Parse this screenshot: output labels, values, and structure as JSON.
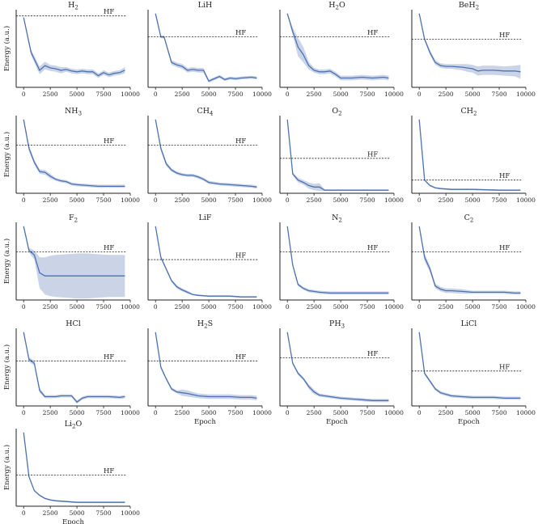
{
  "chart_data": [
    {
      "type": "line",
      "title": "H",
      "sub": "2",
      "hf_label": "HF",
      "xlabel": "",
      "ylabel": "Energy (a.u.)",
      "hf": 0.92,
      "x": [
        0,
        700,
        1500,
        2000,
        2500,
        3000,
        3500,
        4000,
        4500,
        5000,
        5500,
        6000,
        6500,
        7000,
        7500,
        8000,
        8500,
        9000,
        9500
      ],
      "y": [
        0.9,
        0.45,
        0.22,
        0.28,
        0.25,
        0.24,
        0.22,
        0.23,
        0.21,
        0.2,
        0.21,
        0.2,
        0.2,
        0.15,
        0.19,
        0.16,
        0.18,
        0.19,
        0.22
      ],
      "spread": [
        0.01,
        0.04,
        0.05,
        0.05,
        0.04,
        0.04,
        0.04,
        0.03,
        0.03,
        0.03,
        0.03,
        0.03,
        0.03,
        0.03,
        0.03,
        0.03,
        0.03,
        0.03,
        0.04
      ]
    },
    {
      "type": "line",
      "title": "LiH",
      "sub": "",
      "hf_label": "HF",
      "xlabel": "",
      "ylabel": "",
      "hf": 0.65,
      "x": [
        0,
        500,
        800,
        1500,
        2000,
        2500,
        3000,
        3500,
        4000,
        4500,
        5000,
        5500,
        6000,
        6500,
        7000,
        7500,
        8000,
        9000,
        9500
      ],
      "y": [
        0.95,
        0.65,
        0.65,
        0.32,
        0.29,
        0.27,
        0.22,
        0.23,
        0.22,
        0.22,
        0.08,
        0.11,
        0.14,
        0.1,
        0.12,
        0.11,
        0.12,
        0.13,
        0.12
      ],
      "spread": [
        0.01,
        0.02,
        0.02,
        0.03,
        0.03,
        0.03,
        0.03,
        0.03,
        0.03,
        0.03,
        0.02,
        0.02,
        0.02,
        0.02,
        0.02,
        0.02,
        0.02,
        0.02,
        0.02
      ]
    },
    {
      "type": "line",
      "title": "H",
      "sub": "2",
      "post": "O",
      "hf_label": "HF",
      "xlabel": "",
      "ylabel": "",
      "hf": 0.65,
      "x": [
        0,
        500,
        1000,
        1500,
        2000,
        2500,
        3000,
        3500,
        4000,
        4500,
        5000,
        6000,
        7000,
        8000,
        9000,
        9500
      ],
      "y": [
        0.95,
        0.72,
        0.52,
        0.42,
        0.28,
        0.22,
        0.2,
        0.2,
        0.21,
        0.17,
        0.12,
        0.12,
        0.13,
        0.12,
        0.13,
        0.12
      ],
      "spread": [
        0.01,
        0.05,
        0.12,
        0.1,
        0.05,
        0.03,
        0.03,
        0.03,
        0.03,
        0.03,
        0.03,
        0.03,
        0.03,
        0.03,
        0.03,
        0.03
      ]
    },
    {
      "type": "line",
      "title": "BeH",
      "sub": "2",
      "hf_label": "HF",
      "xlabel": "",
      "ylabel": "",
      "hf": 0.62,
      "x": [
        0,
        500,
        1000,
        1500,
        2000,
        2500,
        3000,
        4000,
        4500,
        5000,
        5500,
        6000,
        7000,
        8000,
        9000,
        9500
      ],
      "y": [
        0.95,
        0.62,
        0.45,
        0.32,
        0.28,
        0.27,
        0.27,
        0.26,
        0.25,
        0.24,
        0.21,
        0.22,
        0.22,
        0.21,
        0.21,
        0.2
      ],
      "spread": [
        0.01,
        0.02,
        0.03,
        0.03,
        0.03,
        0.03,
        0.03,
        0.04,
        0.05,
        0.05,
        0.06,
        0.06,
        0.06,
        0.06,
        0.07,
        0.09
      ]
    },
    {
      "type": "line",
      "title": "NH",
      "sub": "3",
      "hf_label": "HF",
      "xlabel": "",
      "ylabel": "Energy (a.u.)",
      "hf": 0.62,
      "x": [
        0,
        500,
        1000,
        1500,
        2000,
        2500,
        3000,
        3500,
        4000,
        4500,
        5000,
        6000,
        7000,
        8000,
        9000,
        9500
      ],
      "y": [
        0.95,
        0.58,
        0.4,
        0.28,
        0.27,
        0.22,
        0.18,
        0.16,
        0.15,
        0.12,
        0.11,
        0.1,
        0.09,
        0.09,
        0.09,
        0.09
      ],
      "spread": [
        0.01,
        0.04,
        0.03,
        0.03,
        0.03,
        0.03,
        0.02,
        0.02,
        0.02,
        0.02,
        0.02,
        0.02,
        0.02,
        0.02,
        0.02,
        0.02
      ]
    },
    {
      "type": "line",
      "title": "CH",
      "sub": "4",
      "hf_label": "HF",
      "xlabel": "",
      "ylabel": "",
      "hf": 0.62,
      "x": [
        0,
        500,
        1000,
        1500,
        2000,
        2500,
        3000,
        3500,
        4000,
        4500,
        5000,
        6000,
        7000,
        8000,
        9000,
        9500
      ],
      "y": [
        0.95,
        0.58,
        0.38,
        0.3,
        0.26,
        0.24,
        0.23,
        0.23,
        0.21,
        0.18,
        0.14,
        0.12,
        0.11,
        0.1,
        0.09,
        0.08
      ],
      "spread": [
        0.01,
        0.03,
        0.03,
        0.02,
        0.02,
        0.02,
        0.02,
        0.02,
        0.02,
        0.02,
        0.02,
        0.02,
        0.02,
        0.02,
        0.02,
        0.02
      ]
    },
    {
      "type": "line",
      "title": "O",
      "sub": "2",
      "hf_label": "HF",
      "xlabel": "",
      "ylabel": "",
      "hf": 0.45,
      "x": [
        0,
        500,
        1000,
        1500,
        2000,
        2500,
        3000,
        3500,
        4000,
        5000,
        6000,
        7000,
        8000,
        9000,
        9500
      ],
      "y": [
        0.95,
        0.25,
        0.17,
        0.14,
        0.1,
        0.08,
        0.08,
        0.04,
        0.04,
        0.04,
        0.04,
        0.04,
        0.04,
        0.04,
        0.04
      ],
      "spread": [
        0.01,
        0.02,
        0.03,
        0.03,
        0.04,
        0.04,
        0.05,
        0.01,
        0.01,
        0.01,
        0.01,
        0.01,
        0.01,
        0.01,
        0.01
      ]
    },
    {
      "type": "line",
      "title": "CH",
      "sub": "2",
      "hf_label": "HF",
      "xlabel": "",
      "ylabel": "",
      "hf": 0.17,
      "x": [
        0,
        500,
        1000,
        1500,
        2000,
        3000,
        5000,
        7500,
        9500
      ],
      "y": [
        0.95,
        0.17,
        0.1,
        0.07,
        0.06,
        0.05,
        0.05,
        0.04,
        0.04
      ],
      "spread": [
        0.01,
        0.01,
        0.01,
        0.01,
        0.01,
        0.01,
        0.01,
        0.01,
        0.01
      ]
    },
    {
      "type": "line",
      "title": "F",
      "sub": "2",
      "hf_label": "HF",
      "xlabel": "",
      "ylabel": "Energy (a.u.)",
      "hf": 0.62,
      "x": [
        0,
        500,
        1000,
        1500,
        2000,
        2500,
        3000,
        4000,
        5000,
        6000,
        7000,
        8000,
        9000,
        9500
      ],
      "y": [
        0.95,
        0.64,
        0.58,
        0.35,
        0.31,
        0.31,
        0.31,
        0.31,
        0.31,
        0.31,
        0.31,
        0.31,
        0.31,
        0.31
      ],
      "spread": [
        0.01,
        0.03,
        0.06,
        0.2,
        0.24,
        0.26,
        0.27,
        0.28,
        0.29,
        0.29,
        0.28,
        0.27,
        0.27,
        0.27
      ]
    },
    {
      "type": "line",
      "title": "LiF",
      "sub": "",
      "hf_label": "HF",
      "xlabel": "",
      "ylabel": "",
      "hf": 0.52,
      "x": [
        0,
        500,
        1000,
        1500,
        2000,
        2500,
        3000,
        3500,
        4000,
        5000,
        6000,
        7000,
        8000,
        9000,
        9500
      ],
      "y": [
        0.95,
        0.55,
        0.4,
        0.25,
        0.17,
        0.13,
        0.1,
        0.07,
        0.06,
        0.05,
        0.05,
        0.05,
        0.04,
        0.04,
        0.04
      ],
      "spread": [
        0.01,
        0.02,
        0.02,
        0.02,
        0.02,
        0.02,
        0.02,
        0.01,
        0.01,
        0.01,
        0.01,
        0.01,
        0.01,
        0.01,
        0.01
      ]
    },
    {
      "type": "line",
      "title": "N",
      "sub": "2",
      "hf_label": "HF",
      "xlabel": "",
      "ylabel": "",
      "hf": 0.62,
      "x": [
        0,
        500,
        1000,
        1500,
        2000,
        2500,
        3000,
        4000,
        5000,
        6000,
        7000,
        8000,
        9000,
        9500
      ],
      "y": [
        0.95,
        0.45,
        0.2,
        0.15,
        0.12,
        0.11,
        0.1,
        0.09,
        0.09,
        0.09,
        0.09,
        0.09,
        0.09,
        0.09
      ],
      "spread": [
        0.01,
        0.02,
        0.02,
        0.02,
        0.02,
        0.02,
        0.02,
        0.02,
        0.02,
        0.02,
        0.02,
        0.02,
        0.02,
        0.02
      ]
    },
    {
      "type": "line",
      "title": "C",
      "sub": "2",
      "hf_label": "HF",
      "xlabel": "",
      "ylabel": "",
      "hf": 0.62,
      "x": [
        0,
        500,
        1000,
        1500,
        2000,
        2500,
        3000,
        4000,
        5000,
        6000,
        7000,
        8000,
        9000,
        9500
      ],
      "y": [
        0.95,
        0.55,
        0.4,
        0.18,
        0.14,
        0.12,
        0.12,
        0.11,
        0.1,
        0.1,
        0.1,
        0.1,
        0.09,
        0.09
      ],
      "spread": [
        0.01,
        0.05,
        0.04,
        0.03,
        0.03,
        0.03,
        0.03,
        0.03,
        0.02,
        0.02,
        0.02,
        0.02,
        0.02,
        0.02
      ]
    },
    {
      "type": "line",
      "title": "HCl",
      "sub": "",
      "hf_label": "HF",
      "xlabel": "",
      "ylabel": "Energy (a.u.)",
      "hf": 0.58,
      "x": [
        0,
        500,
        1000,
        1500,
        2000,
        2500,
        3000,
        3500,
        4000,
        4500,
        5000,
        5500,
        6000,
        7000,
        8000,
        9000,
        9500
      ],
      "y": [
        0.95,
        0.6,
        0.55,
        0.2,
        0.12,
        0.12,
        0.12,
        0.13,
        0.13,
        0.13,
        0.05,
        0.1,
        0.12,
        0.12,
        0.12,
        0.11,
        0.12
      ],
      "spread": [
        0.01,
        0.03,
        0.03,
        0.03,
        0.02,
        0.02,
        0.02,
        0.02,
        0.02,
        0.02,
        0.02,
        0.02,
        0.02,
        0.02,
        0.02,
        0.02,
        0.02
      ]
    },
    {
      "type": "line",
      "title": "H",
      "sub": "2",
      "post": "S",
      "hf_label": "HF",
      "xlabel": "Epoch",
      "ylabel": "",
      "hf": 0.58,
      "x": [
        0,
        500,
        1000,
        1500,
        2000,
        2500,
        3000,
        4000,
        5000,
        6000,
        7000,
        8000,
        9000,
        9500
      ],
      "y": [
        0.95,
        0.5,
        0.35,
        0.22,
        0.18,
        0.17,
        0.16,
        0.13,
        0.12,
        0.12,
        0.12,
        0.11,
        0.11,
        0.1
      ],
      "spread": [
        0.01,
        0.02,
        0.02,
        0.02,
        0.02,
        0.04,
        0.04,
        0.03,
        0.03,
        0.03,
        0.03,
        0.03,
        0.03,
        0.03
      ]
    },
    {
      "type": "line",
      "title": "PH",
      "sub": "3",
      "hf_label": "HF",
      "xlabel": "Epoch",
      "ylabel": "",
      "hf": 0.62,
      "x": [
        0,
        500,
        1000,
        1500,
        2000,
        2500,
        3000,
        4000,
        5000,
        6000,
        7000,
        8000,
        9000,
        9500
      ],
      "y": [
        0.95,
        0.55,
        0.42,
        0.35,
        0.25,
        0.18,
        0.14,
        0.12,
        0.1,
        0.09,
        0.08,
        0.07,
        0.07,
        0.07
      ],
      "spread": [
        0.01,
        0.02,
        0.02,
        0.02,
        0.03,
        0.03,
        0.02,
        0.02,
        0.02,
        0.02,
        0.02,
        0.02,
        0.02,
        0.02
      ]
    },
    {
      "type": "line",
      "title": "LiCl",
      "sub": "",
      "hf_label": "HF",
      "xlabel": "Epoch",
      "ylabel": "",
      "hf": 0.45,
      "x": [
        0,
        500,
        1000,
        1500,
        2000,
        2500,
        3000,
        4000,
        5000,
        6000,
        7000,
        8000,
        9000,
        9500
      ],
      "y": [
        0.95,
        0.42,
        0.32,
        0.22,
        0.17,
        0.15,
        0.13,
        0.12,
        0.11,
        0.11,
        0.11,
        0.1,
        0.1,
        0.1
      ],
      "spread": [
        0.01,
        0.02,
        0.02,
        0.02,
        0.02,
        0.02,
        0.02,
        0.02,
        0.02,
        0.02,
        0.02,
        0.02,
        0.02,
        0.02
      ]
    },
    {
      "type": "line",
      "title": "Li",
      "sub": "2",
      "post": "O",
      "hf_label": "HF",
      "xlabel": "Epoch",
      "ylabel": "Energy (a.u.)",
      "hf": 0.4,
      "x": [
        0,
        500,
        1000,
        1500,
        2000,
        2500,
        3000,
        4000,
        5000,
        6000,
        7000,
        8000,
        9000,
        9500
      ],
      "y": [
        0.95,
        0.38,
        0.2,
        0.14,
        0.1,
        0.08,
        0.07,
        0.06,
        0.05,
        0.05,
        0.05,
        0.05,
        0.05,
        0.05
      ],
      "spread": [
        0.01,
        0.01,
        0.01,
        0.01,
        0.01,
        0.01,
        0.01,
        0.01,
        0.01,
        0.01,
        0.01,
        0.01,
        0.01,
        0.01
      ]
    }
  ],
  "xlim": [
    -700,
    10000
  ],
  "ylim": [
    0,
    1
  ],
  "xticks": [
    0,
    2500,
    5000,
    7500,
    10000
  ],
  "xtick_labels": [
    "0",
    "2500",
    "5000",
    "7500",
    "10000"
  ],
  "colors": {
    "line": "#4c72b0",
    "band": "#b9c6df",
    "axis": "#222222"
  }
}
